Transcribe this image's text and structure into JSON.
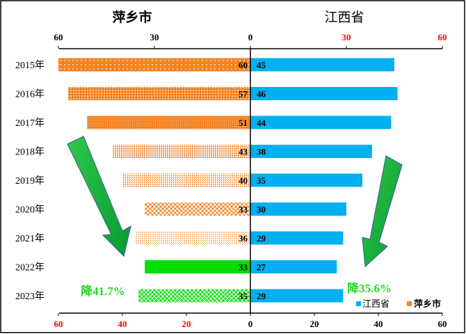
{
  "chart_data": {
    "type": "bar",
    "orientation": "horizontal-butterfly",
    "categories": [
      "2015年",
      "2016年",
      "2017年",
      "2018年",
      "2019年",
      "2020年",
      "2021年",
      "2022年",
      "2023年"
    ],
    "series": [
      {
        "name": "萍乡市",
        "side": "left",
        "color": "#f58220",
        "values": [
          60,
          57,
          51,
          43,
          40,
          33,
          36,
          33,
          35
        ]
      },
      {
        "name": "江西省",
        "side": "right",
        "color": "#00b0f0",
        "values": [
          45,
          46,
          44,
          38,
          35,
          30,
          29,
          27,
          29
        ]
      }
    ],
    "left_title": "萍乡市",
    "right_title": "江西省",
    "left_top_ticks": [
      "60",
      "30",
      "0"
    ],
    "right_top_ticks": [
      "30",
      "60"
    ],
    "left_bottom_ticks": [
      "60",
      "40",
      "20",
      "0"
    ],
    "right_bottom_ticks": [
      "20",
      "40",
      "60"
    ],
    "xlim_left": [
      0,
      60
    ],
    "xlim_right": [
      0,
      60
    ],
    "annotations": {
      "left": "降41.7%",
      "right": "降35.6%"
    },
    "legend": {
      "position": "bottom-right",
      "items": [
        "江西省",
        "萍乡市"
      ]
    },
    "highlight_color": "#22dd22",
    "red_tick_color": "#ff0000"
  }
}
